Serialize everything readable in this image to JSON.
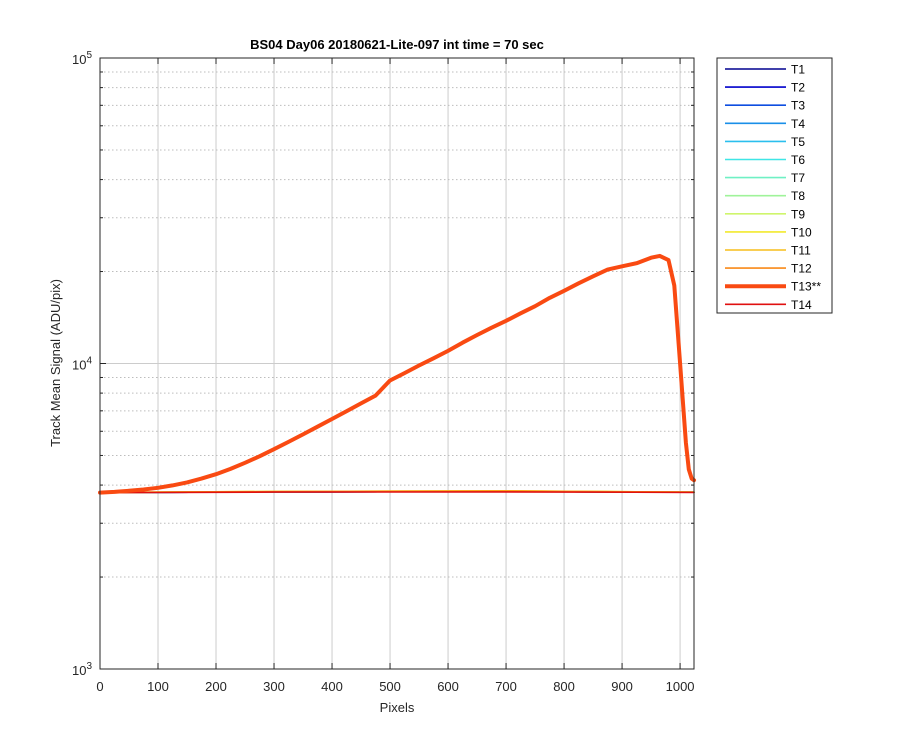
{
  "chart_data": {
    "type": "line",
    "title": "BS04 Day06 20180621-Lite-097 int time = 70 sec",
    "xlabel": "Pixels",
    "ylabel": "Track Mean Signal (ADU/pix)",
    "xlim": [
      0,
      1024
    ],
    "ylim": [
      1000,
      100000
    ],
    "y_scale": "log",
    "x_ticks": [
      0,
      100,
      200,
      300,
      400,
      500,
      600,
      700,
      800,
      900,
      1000
    ],
    "y_ticks": [
      {
        "value": 1000,
        "base": "10",
        "exp": "3"
      },
      {
        "value": 10000,
        "base": "10",
        "exp": "4"
      },
      {
        "value": 100000,
        "base": "10",
        "exp": "5"
      }
    ],
    "grid": true,
    "legend_position": "outside-right",
    "series": [
      {
        "name": "T1",
        "color": "#00008f",
        "x": [
          0,
          300,
          700,
          1024
        ],
        "y": [
          3780,
          3800,
          3810,
          3790
        ]
      },
      {
        "name": "T2",
        "color": "#0000cc",
        "x": [
          0,
          300,
          700,
          1024
        ],
        "y": [
          3780,
          3800,
          3810,
          3790
        ]
      },
      {
        "name": "T3",
        "color": "#0e4ee0",
        "x": [
          0,
          300,
          700,
          1024
        ],
        "y": [
          3780,
          3800,
          3812,
          3790
        ]
      },
      {
        "name": "T4",
        "color": "#1a8fe8",
        "x": [
          0,
          300,
          700,
          1024
        ],
        "y": [
          3780,
          3800,
          3812,
          3790
        ]
      },
      {
        "name": "T5",
        "color": "#2bbfee",
        "x": [
          0,
          300,
          700,
          1024
        ],
        "y": [
          3780,
          3802,
          3815,
          3790
        ]
      },
      {
        "name": "T6",
        "color": "#3fe6e6",
        "x": [
          0,
          300,
          700,
          1024
        ],
        "y": [
          3780,
          3802,
          3815,
          3790
        ]
      },
      {
        "name": "T7",
        "color": "#6ff0c4",
        "x": [
          0,
          300,
          700,
          1024
        ],
        "y": [
          3782,
          3803,
          3818,
          3792
        ]
      },
      {
        "name": "T8",
        "color": "#9ff39a",
        "x": [
          0,
          300,
          700,
          1024
        ],
        "y": [
          3782,
          3805,
          3820,
          3792
        ]
      },
      {
        "name": "T9",
        "color": "#cff56c",
        "x": [
          0,
          300,
          700,
          1024
        ],
        "y": [
          3782,
          3808,
          3825,
          3792
        ]
      },
      {
        "name": "T10",
        "color": "#f2ea2e",
        "x": [
          0,
          300,
          700,
          1024
        ],
        "y": [
          3782,
          3812,
          3830,
          3792
        ]
      },
      {
        "name": "T11",
        "color": "#f7be1a",
        "x": [
          0,
          300,
          700,
          1024
        ],
        "y": [
          3782,
          3810,
          3828,
          3792
        ]
      },
      {
        "name": "T12",
        "color": "#f98a18",
        "x": [
          0,
          300,
          700,
          1024
        ],
        "y": [
          3782,
          3806,
          3820,
          3792
        ]
      },
      {
        "name": "T13**",
        "color": "#f94a12",
        "highlight": true,
        "x": [
          0,
          25,
          50,
          75,
          100,
          125,
          150,
          175,
          200,
          225,
          250,
          275,
          300,
          325,
          350,
          375,
          400,
          425,
          450,
          475,
          500,
          525,
          550,
          575,
          600,
          625,
          650,
          675,
          700,
          725,
          750,
          775,
          800,
          825,
          850,
          875,
          900,
          925,
          950,
          965,
          980,
          990,
          1000,
          1010,
          1015,
          1020,
          1024
        ],
        "y": [
          3780,
          3800,
          3830,
          3870,
          3920,
          3990,
          4080,
          4200,
          4340,
          4520,
          4730,
          4970,
          5240,
          5540,
          5860,
          6210,
          6580,
          6980,
          7400,
          7850,
          8800,
          9300,
          9850,
          10400,
          11000,
          11700,
          12400,
          13100,
          13800,
          14600,
          15400,
          16400,
          17300,
          18300,
          19300,
          20300,
          20800,
          21300,
          22200,
          22500,
          21800,
          18000,
          10000,
          5500,
          4500,
          4200,
          4150
        ]
      },
      {
        "name": "T14",
        "color": "#e01010",
        "x": [
          0,
          300,
          700,
          1024
        ],
        "y": [
          3780,
          3795,
          3800,
          3785
        ]
      }
    ]
  }
}
